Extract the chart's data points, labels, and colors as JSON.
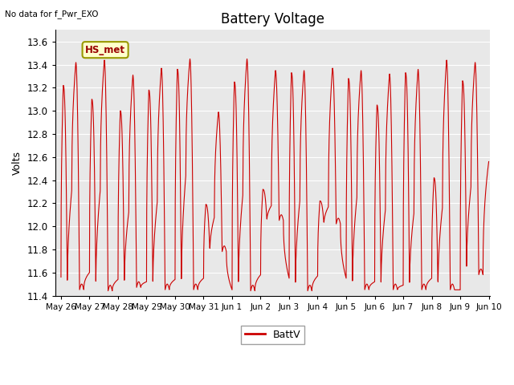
{
  "title": "Battery Voltage",
  "ylabel": "Volts",
  "note": "No data for f_Pwr_EXO",
  "legend_label": "BattV",
  "line_color": "#cc0000",
  "background_color": "#e8e8e8",
  "ylim": [
    11.4,
    13.7
  ],
  "yticks": [
    11.4,
    11.6,
    11.8,
    12.0,
    12.2,
    12.4,
    12.6,
    12.8,
    13.0,
    13.2,
    13.4,
    13.6
  ],
  "xtick_labels": [
    "May 26",
    "May 27",
    "May 28",
    "May 29",
    "May 30",
    "May 31",
    "Jun 1",
    "Jun 2",
    "Jun 3",
    "Jun 4",
    "Jun 5",
    "Jun 6",
    "Jun 7",
    "Jun 8",
    "Jun 9",
    "Jun 10"
  ],
  "hs_met_box_color": "#ffffcc",
  "hs_met_text_color": "#990000",
  "hs_met_border_color": "#999900"
}
